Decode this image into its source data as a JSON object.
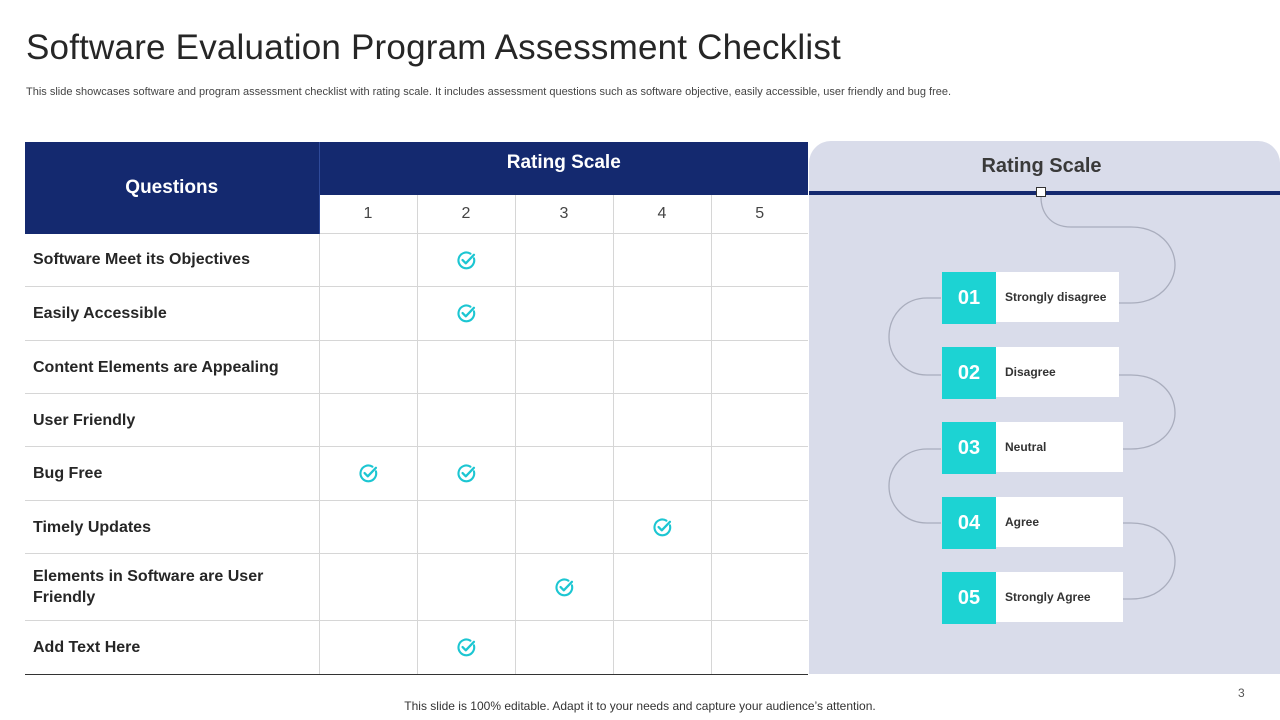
{
  "title": "Software Evaluation Program Assessment Checklist",
  "subtitle": "This slide showcases software and program assessment checklist with rating scale. It includes assessment questions such as software objective, easily accessible, user friendly and bug free.",
  "table": {
    "questions_header": "Questions",
    "rating_header": "Rating Scale",
    "scale": [
      "1",
      "2",
      "3",
      "4",
      "5"
    ],
    "rows": [
      {
        "question": "Software Meet its Objectives",
        "checked": [
          2
        ]
      },
      {
        "question": "Easily Accessible",
        "checked": [
          2
        ]
      },
      {
        "question": "Content Elements  are Appealing",
        "checked": []
      },
      {
        "question": "User Friendly",
        "checked": []
      },
      {
        "question": "Bug Free",
        "checked": [
          1,
          2
        ]
      },
      {
        "question": "Timely  Updates",
        "checked": [
          4
        ]
      },
      {
        "question": "Elements  in Software are User Friendly",
        "checked": [
          3
        ]
      },
      {
        "question": "Add  Text Here",
        "checked": [
          2
        ]
      }
    ]
  },
  "panel": {
    "title": "Rating Scale",
    "steps": [
      {
        "num": "01",
        "label": "Strongly disagree"
      },
      {
        "num": "02",
        "label": "Disagree"
      },
      {
        "num": "03",
        "label": "Neutral"
      },
      {
        "num": "04",
        "label": "Agree"
      },
      {
        "num": "05",
        "label": "Strongly Agree"
      }
    ]
  },
  "colors": {
    "navy": "#14296f",
    "teal": "#1cd3d3",
    "check": "#1cc6d2",
    "panel_bg": "#d9dcea"
  },
  "footer": "This slide is 100% editable. Adapt it to your needs and capture your audience’s attention.",
  "page_number": "3"
}
